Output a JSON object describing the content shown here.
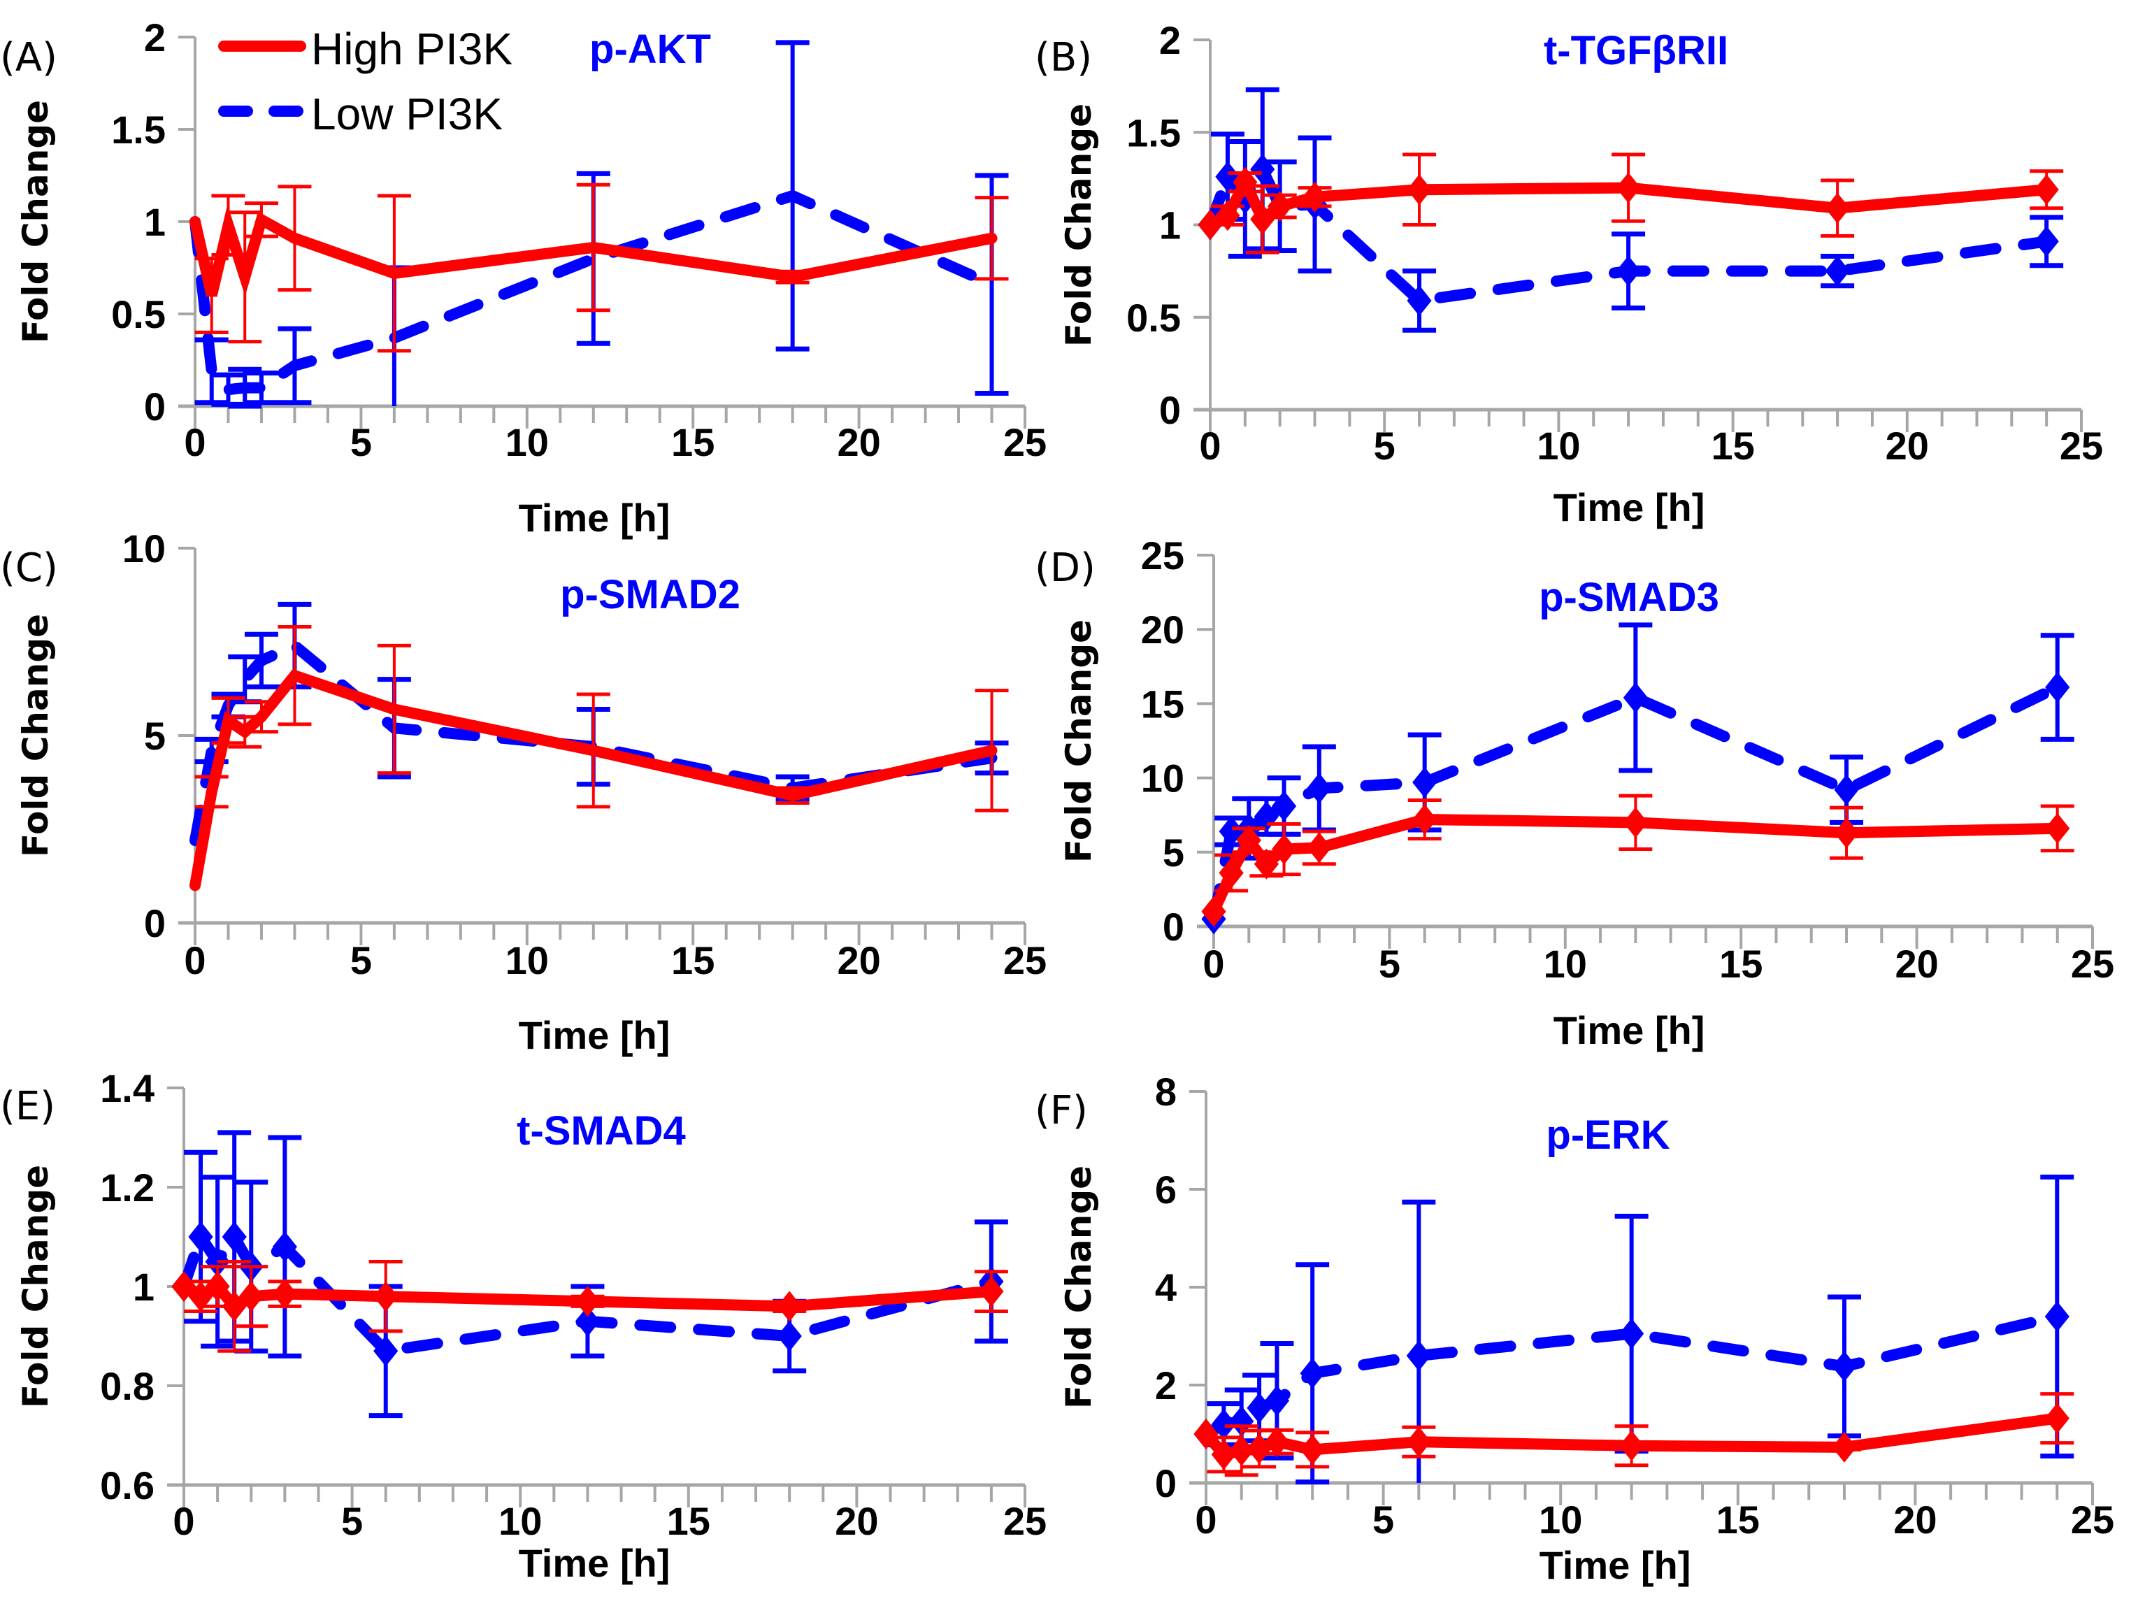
{
  "legend": {
    "entries": [
      {
        "label": "High PI3K",
        "color": "#ff0000",
        "style": "solid"
      },
      {
        "label": "Low PI3K",
        "color": "#0000ff",
        "style": "dashed"
      }
    ]
  },
  "chart_data": [
    {
      "panel": "(A)",
      "type": "line",
      "title": "p-AKT",
      "xlabel": "Time [h]",
      "ylabel": "Fold Change",
      "xlim": [
        0,
        25
      ],
      "ylim": [
        0,
        2
      ],
      "xticks": [
        "0",
        "5",
        "10",
        "15",
        "20",
        "25"
      ],
      "yticks": [
        "0",
        "0.5",
        "1",
        "1.5",
        "2"
      ],
      "markers": false,
      "grid": false,
      "series": [
        {
          "name": "High PI3K",
          "x": [
            0,
            0.5,
            1,
            1.5,
            2,
            3,
            6,
            12,
            18,
            24
          ],
          "y": [
            1.0,
            0.6,
            0.98,
            0.7,
            1.01,
            0.91,
            0.72,
            0.86,
            0.7,
            0.91
          ],
          "err": [
            0,
            0.2,
            0.16,
            0.35,
            0.09,
            0.28,
            0.42,
            0.34,
            0.03,
            0.22
          ]
        },
        {
          "name": "Low PI3K",
          "x": [
            0,
            0.5,
            1,
            1.5,
            2,
            3,
            6,
            12,
            18,
            24
          ],
          "y": [
            1.0,
            0.19,
            0.09,
            0.1,
            0.1,
            0.22,
            0.37,
            0.8,
            1.14,
            0.66
          ],
          "err": [
            0,
            0.17,
            0.08,
            0.1,
            0.08,
            0.2,
            0.38,
            0.46,
            0.83,
            0.59
          ]
        }
      ]
    },
    {
      "panel": "(B)",
      "type": "line",
      "title": "t-TGFβRII",
      "xlabel": "Time [h]",
      "ylabel": "Fold Change",
      "xlim": [
        0,
        25
      ],
      "ylim": [
        0,
        2
      ],
      "xticks": [
        "0",
        "5",
        "10",
        "15",
        "20",
        "25"
      ],
      "yticks": [
        "0",
        "0.5",
        "1",
        "1.5",
        "2"
      ],
      "markers": true,
      "grid": false,
      "series": [
        {
          "name": "High PI3K",
          "x": [
            0,
            0.5,
            1,
            1.5,
            2,
            3,
            6,
            12,
            18,
            24
          ],
          "y": [
            1.0,
            1.05,
            1.23,
            1.03,
            1.1,
            1.15,
            1.19,
            1.2,
            1.09,
            1.19
          ],
          "err": [
            0,
            0.05,
            0.05,
            0.18,
            0.06,
            0.05,
            0.19,
            0.18,
            0.15,
            0.1
          ]
        },
        {
          "name": "Low PI3K",
          "x": [
            0,
            0.5,
            1,
            1.5,
            2,
            3,
            6,
            12,
            18,
            24
          ],
          "y": [
            1.0,
            1.26,
            1.14,
            1.3,
            1.1,
            1.11,
            0.59,
            0.75,
            0.75,
            0.91
          ],
          "err": [
            0,
            0.23,
            0.31,
            0.43,
            0.24,
            0.36,
            0.16,
            0.2,
            0.08,
            0.13
          ]
        }
      ]
    },
    {
      "panel": "(C)",
      "type": "line",
      "title": "p-SMAD2",
      "xlabel": "Time [h]",
      "ylabel": "Fold Change",
      "xlim": [
        0,
        25
      ],
      "ylim": [
        0,
        10
      ],
      "xticks": [
        "0",
        "5",
        "10",
        "15",
        "20",
        "25"
      ],
      "yticks": [
        "0",
        "5",
        "10"
      ],
      "markers": false,
      "grid": false,
      "series": [
        {
          "name": "High PI3K",
          "x": [
            0,
            0.5,
            1,
            1.5,
            2,
            3,
            6,
            12,
            18,
            24
          ],
          "y": [
            1.0,
            3.5,
            5.4,
            5.1,
            5.5,
            6.6,
            5.7,
            4.6,
            3.4,
            4.6
          ],
          "err": [
            0,
            0.4,
            0.6,
            0.4,
            0.4,
            1.3,
            1.7,
            1.5,
            0.2,
            1.6
          ]
        },
        {
          "name": "Low PI3K",
          "x": [
            0,
            0.5,
            1,
            1.5,
            2,
            3,
            6,
            12,
            18,
            24
          ],
          "y": [
            2.2,
            4.6,
            5.8,
            6.5,
            7.0,
            7.4,
            5.2,
            4.7,
            3.6,
            4.4
          ],
          "err": [
            0,
            0.3,
            0.3,
            0.6,
            0.7,
            1.1,
            1.3,
            1.0,
            0.3,
            0.4
          ]
        }
      ]
    },
    {
      "panel": "(D)",
      "type": "line",
      "title": "p-SMAD3",
      "xlabel": "Time [h]",
      "ylabel": "Fold Change",
      "xlim": [
        0,
        25
      ],
      "ylim": [
        0,
        25
      ],
      "xticks": [
        "0",
        "5",
        "10",
        "15",
        "20",
        "25"
      ],
      "yticks": [
        "0",
        "5",
        "10",
        "15",
        "20",
        "25"
      ],
      "markers": true,
      "grid": false,
      "series": [
        {
          "name": "High PI3K",
          "x": [
            0,
            0.5,
            1,
            1.5,
            2,
            3,
            6,
            12,
            18,
            24
          ],
          "y": [
            1.0,
            3.6,
            5.8,
            4.2,
            5.2,
            5.3,
            7.2,
            7.0,
            6.3,
            6.6
          ],
          "err": [
            0,
            1.2,
            0.8,
            0.8,
            1.7,
            1.1,
            1.3,
            1.8,
            1.7,
            1.5
          ]
        },
        {
          "name": "Low PI3K",
          "x": [
            0,
            0.5,
            1,
            1.5,
            2,
            3,
            6,
            12,
            18,
            24
          ],
          "y": [
            0.5,
            6.4,
            6.6,
            7.4,
            8.1,
            9.3,
            9.7,
            15.4,
            9.2,
            16.1
          ],
          "err": [
            0,
            0.9,
            2.0,
            1.2,
            1.9,
            2.8,
            3.2,
            4.9,
            2.2,
            3.5
          ]
        }
      ]
    },
    {
      "panel": "(E)",
      "type": "line",
      "title": "t-SMAD4",
      "xlabel": "Time [h]",
      "ylabel": "Fold Change",
      "xlim": [
        0,
        25
      ],
      "ylim": [
        0.6,
        1.4
      ],
      "xticks": [
        "0",
        "5",
        "10",
        "15",
        "20",
        "25"
      ],
      "yticks": [
        "0.6",
        "0.8",
        "1",
        "1.2",
        "1.4"
      ],
      "markers": true,
      "grid": false,
      "series": [
        {
          "name": "High PI3K",
          "x": [
            0,
            0.5,
            1,
            1.5,
            2,
            3,
            6,
            12,
            18,
            24
          ],
          "y": [
            1.0,
            0.98,
            1.0,
            0.96,
            0.98,
            0.985,
            0.98,
            0.97,
            0.96,
            0.99
          ],
          "err": [
            0,
            0.03,
            0.04,
            0.09,
            0.06,
            0.025,
            0.07,
            0.01,
            0.01,
            0.04
          ]
        },
        {
          "name": "Low PI3K",
          "x": [
            0,
            0.5,
            1,
            1.5,
            2,
            3,
            6,
            12,
            18,
            24
          ],
          "y": [
            1.0,
            1.1,
            1.05,
            1.1,
            1.04,
            1.08,
            0.87,
            0.93,
            0.9,
            1.01
          ],
          "err": [
            0,
            0.17,
            0.17,
            0.21,
            0.17,
            0.22,
            0.13,
            0.07,
            0.07,
            0.12
          ]
        }
      ]
    },
    {
      "panel": "(F)",
      "type": "line",
      "title": "p-ERK",
      "xlabel": "Time [h]",
      "ylabel": "Fold Change",
      "xlim": [
        0,
        25
      ],
      "ylim": [
        0,
        8
      ],
      "xticks": [
        "0",
        "5",
        "10",
        "15",
        "20",
        "25"
      ],
      "yticks": [
        "0",
        "2",
        "4",
        "6",
        "8"
      ],
      "markers": true,
      "grid": false,
      "series": [
        {
          "name": "High PI3K",
          "x": [
            0,
            0.5,
            1,
            1.5,
            2,
            3,
            6,
            12,
            18,
            24
          ],
          "y": [
            1.0,
            0.58,
            0.66,
            0.7,
            0.84,
            0.68,
            0.84,
            0.76,
            0.73,
            1.32
          ],
          "err": [
            0,
            0.35,
            0.5,
            0.37,
            0.24,
            0.35,
            0.3,
            0.4,
            0.05,
            0.5
          ]
        },
        {
          "name": "Low PI3K",
          "x": [
            0,
            0.5,
            1,
            1.5,
            2,
            3,
            6,
            12,
            18,
            24
          ],
          "y": [
            1.0,
            1.2,
            1.26,
            1.53,
            1.68,
            2.24,
            2.6,
            3.05,
            2.38,
            3.4
          ],
          "err": [
            0,
            0.42,
            0.64,
            0.67,
            1.17,
            2.22,
            3.14,
            2.4,
            1.42,
            2.85
          ]
        }
      ]
    }
  ]
}
